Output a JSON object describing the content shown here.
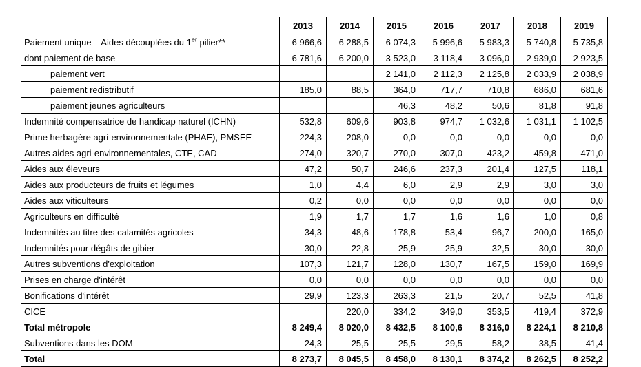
{
  "table": {
    "corner_header": "",
    "columns": [
      "2013",
      "2014",
      "2015",
      "2016",
      "2017",
      "2018",
      "2019"
    ],
    "rows": [
      {
        "label": "Paiement unique – Aides découplées du 1er pilier**",
        "label_parts": [
          {
            "text": "Paiement unique – Aides découplées du 1",
            "sup": false
          },
          {
            "text": "er",
            "sup": true
          },
          {
            "text": " pilier**",
            "sup": false
          }
        ],
        "indent": 0,
        "bold": false,
        "values": [
          "6 966,6",
          "6 288,5",
          "6 074,3",
          "5 996,6",
          "5 983,3",
          "5 740,8",
          "5 735,8"
        ]
      },
      {
        "label": "dont paiement de base",
        "indent": 0,
        "bold": false,
        "values": [
          "6 781,6",
          "6 200,0",
          "3 523,0",
          "3 118,4",
          "3 096,0",
          "2 939,0",
          "2 923,5"
        ]
      },
      {
        "label": "paiement vert",
        "indent": 1,
        "bold": false,
        "values": [
          "",
          "",
          "2 141,0",
          "2 112,3",
          "2 125,8",
          "2 033,9",
          "2 038,9"
        ]
      },
      {
        "label": "paiement redistributif",
        "indent": 1,
        "bold": false,
        "values": [
          "185,0",
          "88,5",
          "364,0",
          "717,7",
          "710,8",
          "686,0",
          "681,6"
        ]
      },
      {
        "label": "paiement jeunes agriculteurs",
        "indent": 1,
        "bold": false,
        "values": [
          "",
          "",
          "46,3",
          "48,2",
          "50,6",
          "81,8",
          "91,8"
        ]
      },
      {
        "label": "Indemnité compensatrice de handicap naturel (ICHN)",
        "indent": 0,
        "bold": false,
        "values": [
          "532,8",
          "609,6",
          "903,8",
          "974,7",
          "1 032,6",
          "1 031,1",
          "1 102,5"
        ]
      },
      {
        "label": "Prime herbagère agri-environnementale (PHAE), PMSEE",
        "indent": 0,
        "bold": false,
        "values": [
          "224,3",
          "208,0",
          "0,0",
          "0,0",
          "0,0",
          "0,0",
          "0,0"
        ]
      },
      {
        "label": "Autres aides agri-environnementales, CTE, CAD",
        "indent": 0,
        "bold": false,
        "values": [
          "274,0",
          "320,7",
          "270,0",
          "307,0",
          "423,2",
          "459,8",
          "471,0"
        ]
      },
      {
        "label": "Aides aux éleveurs",
        "indent": 0,
        "bold": false,
        "values": [
          "47,2",
          "50,7",
          "246,6",
          "237,3",
          "201,4",
          "127,5",
          "118,1"
        ]
      },
      {
        "label": "Aides aux producteurs de fruits et légumes",
        "indent": 0,
        "bold": false,
        "values": [
          "1,0",
          "4,4",
          "6,0",
          "2,9",
          "2,9",
          "3,0",
          "3,0"
        ]
      },
      {
        "label": "Aides aux viticulteurs",
        "indent": 0,
        "bold": false,
        "values": [
          "0,2",
          "0,0",
          "0,0",
          "0,0",
          "0,0",
          "0,0",
          "0,0"
        ]
      },
      {
        "label": "Agriculteurs en difficulté",
        "indent": 0,
        "bold": false,
        "values": [
          "1,9",
          "1,7",
          "1,7",
          "1,6",
          "1,6",
          "1,0",
          "0,8"
        ]
      },
      {
        "label": "Indemnités au titre des calamités agricoles",
        "indent": 0,
        "bold": false,
        "values": [
          "34,3",
          "48,6",
          "178,8",
          "53,4",
          "96,7",
          "200,0",
          "165,0"
        ]
      },
      {
        "label": "Indemnités pour dégâts de gibier",
        "indent": 0,
        "bold": false,
        "values": [
          "30,0",
          "22,8",
          "25,9",
          "25,9",
          "32,5",
          "30,0",
          "30,0"
        ]
      },
      {
        "label": "Autres subventions d'exploitation",
        "indent": 0,
        "bold": false,
        "values": [
          "107,3",
          "121,7",
          "128,0",
          "130,7",
          "167,5",
          "159,0",
          "169,9"
        ]
      },
      {
        "label": "Prises en charge d'intérêt",
        "indent": 0,
        "bold": false,
        "values": [
          "0,0",
          "0,0",
          "0,0",
          "0,0",
          "0,0",
          "0,0",
          "0,0"
        ]
      },
      {
        "label": "Bonifications d'intérêt",
        "indent": 0,
        "bold": false,
        "values": [
          "29,9",
          "123,3",
          "263,3",
          "21,5",
          "20,7",
          "52,5",
          "41,8"
        ]
      },
      {
        "label": "CICE",
        "indent": 0,
        "bold": false,
        "values": [
          "",
          "220,0",
          "334,2",
          "349,0",
          "353,5",
          "419,4",
          "372,9"
        ]
      },
      {
        "label": "Total métropole",
        "indent": 0,
        "bold": true,
        "values": [
          "8 249,4",
          "8 020,0",
          "8 432,5",
          "8 100,6",
          "8 316,0",
          "8 224,1",
          "8 210,8"
        ]
      },
      {
        "label": "Subventions dans les DOM",
        "indent": 0,
        "bold": false,
        "values": [
          "24,3",
          "25,5",
          "25,5",
          "29,5",
          "58,2",
          "38,5",
          "41,4"
        ]
      },
      {
        "label": "Total",
        "indent": 0,
        "bold": true,
        "values": [
          "8 273,7",
          "8 045,5",
          "8 458,0",
          "8 130,1",
          "8 374,2",
          "8 262,5",
          "8 252,2"
        ]
      }
    ]
  }
}
